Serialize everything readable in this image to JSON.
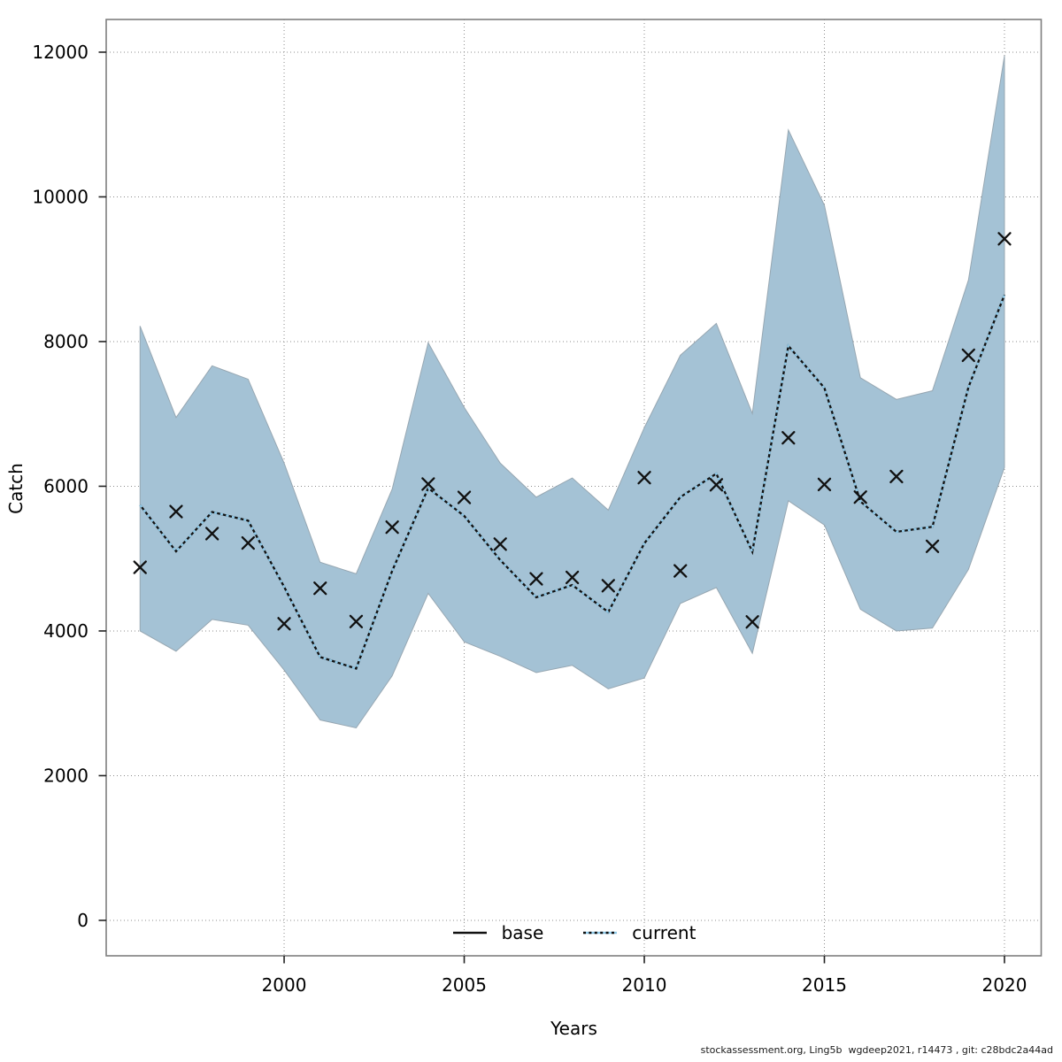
{
  "figure": {
    "title": "",
    "xlabel": "Years",
    "ylabel": "Catch",
    "footer": "stockassessment.org, Ling5b  wgdeep2021, r14473 , git: c28bdc2a44ad"
  },
  "legend": {
    "items": [
      {
        "label": "base",
        "style": "solid-black"
      },
      {
        "label": "current",
        "style": "dotted-blue"
      }
    ]
  },
  "colors": {
    "band_fill": "#a4c2d5",
    "band_edge": "#97a7b2",
    "base_line": "#111111",
    "current_line": "#8fc9e8",
    "marker": "#111111",
    "grid": "#8c8c8c",
    "axis_box": "#7f7f7f",
    "tick": "#222222",
    "text": "#000000"
  },
  "chart_data": {
    "type": "line",
    "title": "",
    "xlabel": "Years",
    "ylabel": "Catch",
    "grid": true,
    "legend_position": "bottom-center",
    "xlim": [
      1995.06,
      2021.02
    ],
    "ylim": [
      -490,
      12452
    ],
    "xticks": [
      2000,
      2005,
      2010,
      2015,
      2020
    ],
    "yticks": [
      0,
      2000,
      4000,
      6000,
      8000,
      10000,
      12000
    ],
    "x": [
      1996,
      1997,
      1998,
      1999,
      2000,
      2001,
      2002,
      2003,
      2004,
      2005,
      2006,
      2007,
      2008,
      2009,
      2010,
      2011,
      2012,
      2013,
      2014,
      2015,
      2016,
      2017,
      2018,
      2019,
      2020
    ],
    "series": [
      {
        "name": "observed catch",
        "style": "x-markers",
        "values": [
          4880,
          5650,
          5345,
          5215,
          4100,
          4590,
          4130,
          5435,
          6030,
          5845,
          5200,
          4720,
          4740,
          4625,
          6120,
          4830,
          6020,
          4125,
          6670,
          6025,
          5850,
          6135,
          5170,
          7810,
          9420
        ]
      },
      {
        "name": "base",
        "style": "solid",
        "values": [
          5740,
          5100,
          5645,
          5525,
          4610,
          3640,
          3480,
          4830,
          5975,
          5590,
          4980,
          4465,
          4635,
          4260,
          5210,
          5850,
          6175,
          5095,
          7940,
          7360,
          5790,
          5370,
          5440,
          7370,
          8645
        ]
      },
      {
        "name": "current",
        "style": "dotted",
        "values": [
          5740,
          5100,
          5645,
          5525,
          4610,
          3640,
          3480,
          4830,
          5975,
          5590,
          4980,
          4465,
          4635,
          4260,
          5210,
          5850,
          6175,
          5095,
          7940,
          7360,
          5790,
          5370,
          5440,
          7370,
          8645
        ]
      }
    ],
    "confidence_band": {
      "lower": [
        4000,
        3720,
        4160,
        4080,
        3460,
        2770,
        2660,
        3380,
        4520,
        3850,
        3650,
        3425,
        3525,
        3200,
        3350,
        4380,
        4600,
        3690,
        5800,
        5465,
        4300,
        4000,
        4040,
        4850,
        6260
      ],
      "upper": [
        8215,
        6950,
        7665,
        7480,
        6320,
        4950,
        4790,
        5960,
        7985,
        7090,
        6320,
        5850,
        6115,
        5670,
        6810,
        7810,
        8250,
        7005,
        10925,
        9885,
        7500,
        7200,
        7320,
        8850,
        11950
      ]
    }
  }
}
